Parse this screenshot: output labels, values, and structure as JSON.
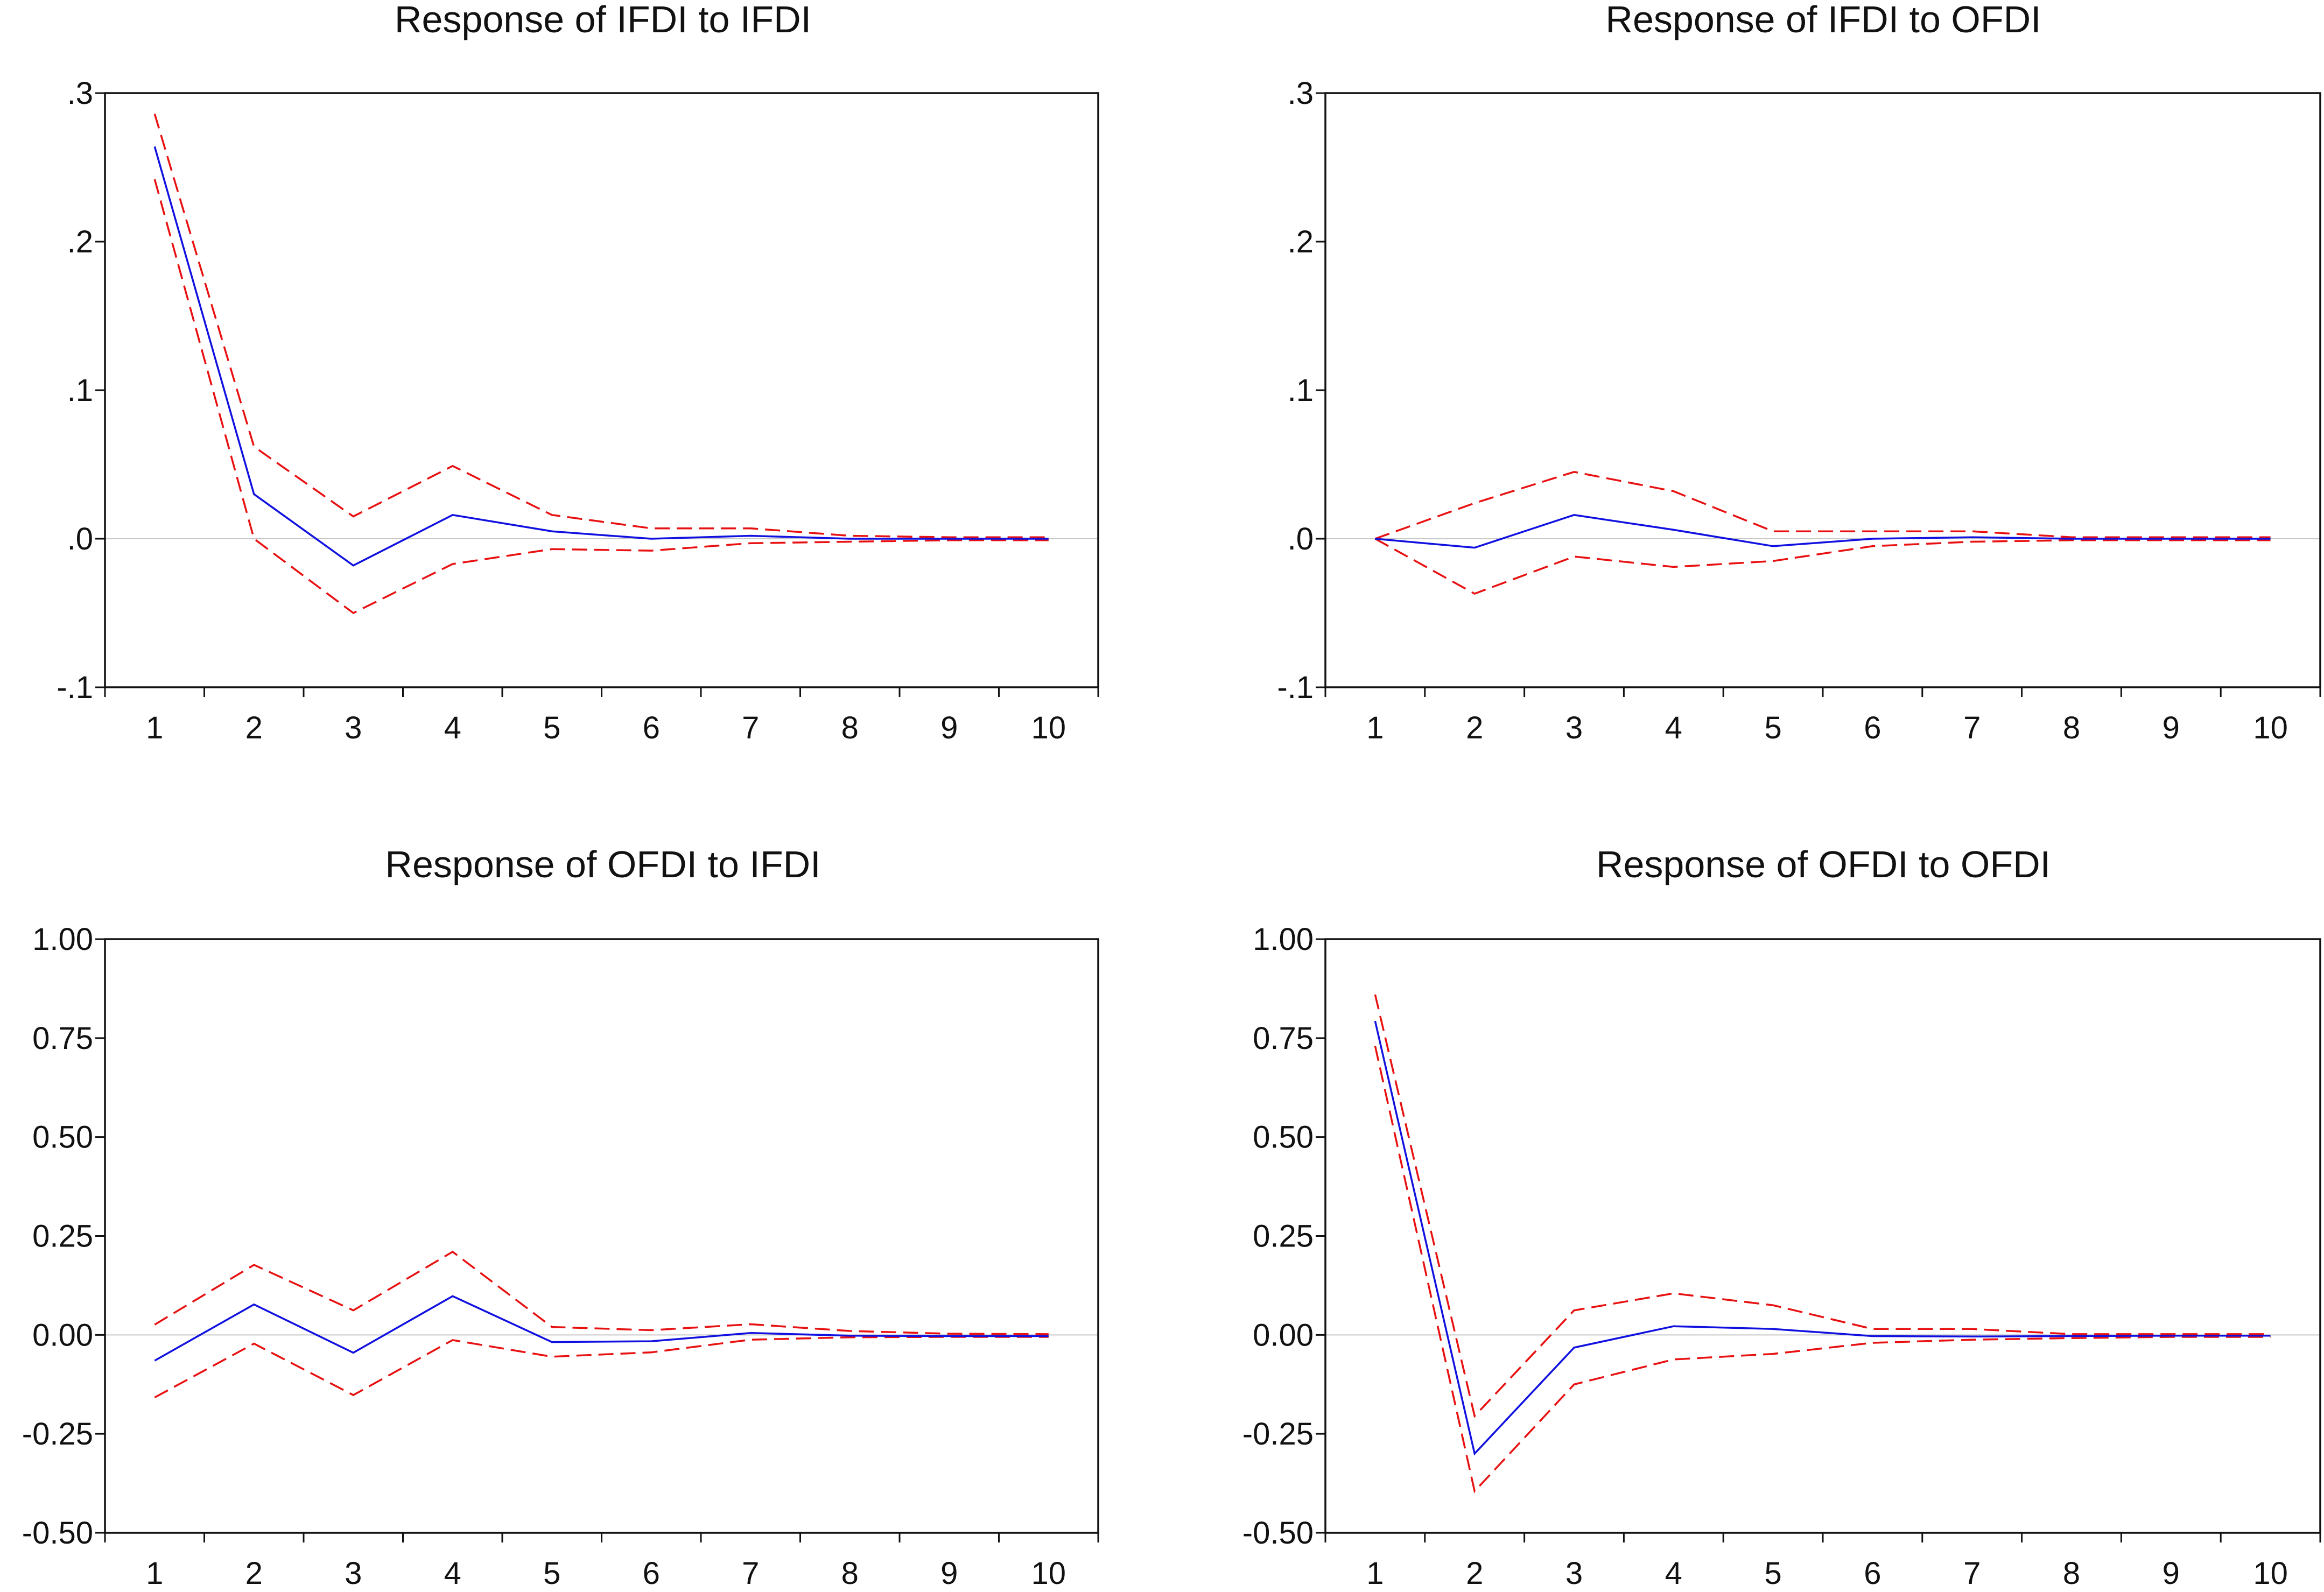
{
  "colors": {
    "response": "#1010e0",
    "band": "#e81010",
    "axis": "#111111",
    "zero_line": "#c8c8c8",
    "background": "#ffffff"
  },
  "chart_data": [
    {
      "type": "line",
      "title": "Response of IFDI to IFDI",
      "x": [
        1,
        2,
        3,
        4,
        5,
        6,
        7,
        8,
        9,
        10
      ],
      "xticks": [
        "1",
        "2",
        "3",
        "4",
        "5",
        "6",
        "7",
        "8",
        "9",
        "10"
      ],
      "ylim": [
        -0.1,
        0.3
      ],
      "yticks": [
        -0.1,
        0.0,
        0.1,
        0.2,
        0.3
      ],
      "ytick_labels": [
        "-.1",
        ".0",
        ".1",
        ".2",
        ".3"
      ],
      "grid": false,
      "series": [
        {
          "name": "response",
          "style": "solid",
          "values": [
            0.264,
            0.03,
            -0.018,
            0.016,
            0.005,
            0.0,
            0.002,
            0.0,
            0.0,
            0.0
          ]
        },
        {
          "name": "upper",
          "style": "dashed",
          "values": [
            0.286,
            0.062,
            0.015,
            0.049,
            0.016,
            0.007,
            0.007,
            0.002,
            0.001,
            0.001
          ]
        },
        {
          "name": "lower",
          "style": "dashed",
          "values": [
            0.242,
            0.0,
            -0.05,
            -0.017,
            -0.007,
            -0.008,
            -0.003,
            -0.002,
            -0.001,
            -0.001
          ]
        }
      ]
    },
    {
      "type": "line",
      "title": "Response of IFDI to OFDI",
      "x": [
        1,
        2,
        3,
        4,
        5,
        6,
        7,
        8,
        9,
        10
      ],
      "xticks": [
        "1",
        "2",
        "3",
        "4",
        "5",
        "6",
        "7",
        "8",
        "9",
        "10"
      ],
      "ylim": [
        -0.1,
        0.3
      ],
      "yticks": [
        -0.1,
        0.0,
        0.1,
        0.2,
        0.3
      ],
      "ytick_labels": [
        "-.1",
        ".0",
        ".1",
        ".2",
        ".3"
      ],
      "grid": false,
      "series": [
        {
          "name": "response",
          "style": "solid",
          "values": [
            0.0,
            -0.006,
            0.016,
            0.006,
            -0.005,
            0.0,
            0.001,
            0.0,
            0.0,
            0.0
          ]
        },
        {
          "name": "upper",
          "style": "dashed",
          "values": [
            0.0,
            0.024,
            0.045,
            0.032,
            0.005,
            0.005,
            0.005,
            0.001,
            0.001,
            0.001
          ]
        },
        {
          "name": "lower",
          "style": "dashed",
          "values": [
            0.0,
            -0.037,
            -0.012,
            -0.019,
            -0.015,
            -0.005,
            -0.002,
            -0.001,
            -0.001,
            -0.001
          ]
        }
      ]
    },
    {
      "type": "line",
      "title": "Response of OFDI to IFDI",
      "x": [
        1,
        2,
        3,
        4,
        5,
        6,
        7,
        8,
        9,
        10
      ],
      "xticks": [
        "1",
        "2",
        "3",
        "4",
        "5",
        "6",
        "7",
        "8",
        "9",
        "10"
      ],
      "ylim": [
        -0.5,
        1.0
      ],
      "yticks": [
        -0.5,
        -0.25,
        0.0,
        0.25,
        0.5,
        0.75,
        1.0
      ],
      "ytick_labels": [
        "-0.50",
        "-0.25",
        "0.00",
        "0.25",
        "0.50",
        "0.75",
        "1.00"
      ],
      "grid": false,
      "series": [
        {
          "name": "response",
          "style": "solid",
          "values": [
            -0.065,
            0.077,
            -0.045,
            0.098,
            -0.018,
            -0.016,
            0.005,
            -0.002,
            -0.003,
            -0.003
          ]
        },
        {
          "name": "upper",
          "style": "dashed",
          "values": [
            0.026,
            0.177,
            0.062,
            0.21,
            0.02,
            0.012,
            0.027,
            0.01,
            0.003,
            0.002
          ]
        },
        {
          "name": "lower",
          "style": "dashed",
          "values": [
            -0.158,
            -0.022,
            -0.152,
            -0.013,
            -0.055,
            -0.044,
            -0.012,
            -0.006,
            -0.005,
            -0.005
          ]
        }
      ]
    },
    {
      "type": "line",
      "title": "Response of OFDI to OFDI",
      "x": [
        1,
        2,
        3,
        4,
        5,
        6,
        7,
        8,
        9,
        10
      ],
      "xticks": [
        "1",
        "2",
        "3",
        "4",
        "5",
        "6",
        "7",
        "8",
        "9",
        "10"
      ],
      "ylim": [
        -0.5,
        1.0
      ],
      "yticks": [
        -0.5,
        -0.25,
        0.0,
        0.25,
        0.5,
        0.75,
        1.0
      ],
      "ytick_labels": [
        "-0.50",
        "-0.25",
        "0.00",
        "0.25",
        "0.50",
        "0.75",
        "1.00"
      ],
      "grid": false,
      "series": [
        {
          "name": "response",
          "style": "solid",
          "values": [
            0.793,
            -0.3,
            -0.032,
            0.022,
            0.015,
            -0.003,
            -0.004,
            -0.003,
            -0.002,
            -0.002
          ]
        },
        {
          "name": "upper",
          "style": "dashed",
          "values": [
            0.86,
            -0.205,
            0.062,
            0.105,
            0.075,
            0.015,
            0.015,
            0.002,
            0.002,
            0.002
          ]
        },
        {
          "name": "lower",
          "style": "dashed",
          "values": [
            0.73,
            -0.395,
            -0.125,
            -0.062,
            -0.048,
            -0.02,
            -0.012,
            -0.008,
            -0.005,
            -0.005
          ]
        }
      ]
    }
  ]
}
